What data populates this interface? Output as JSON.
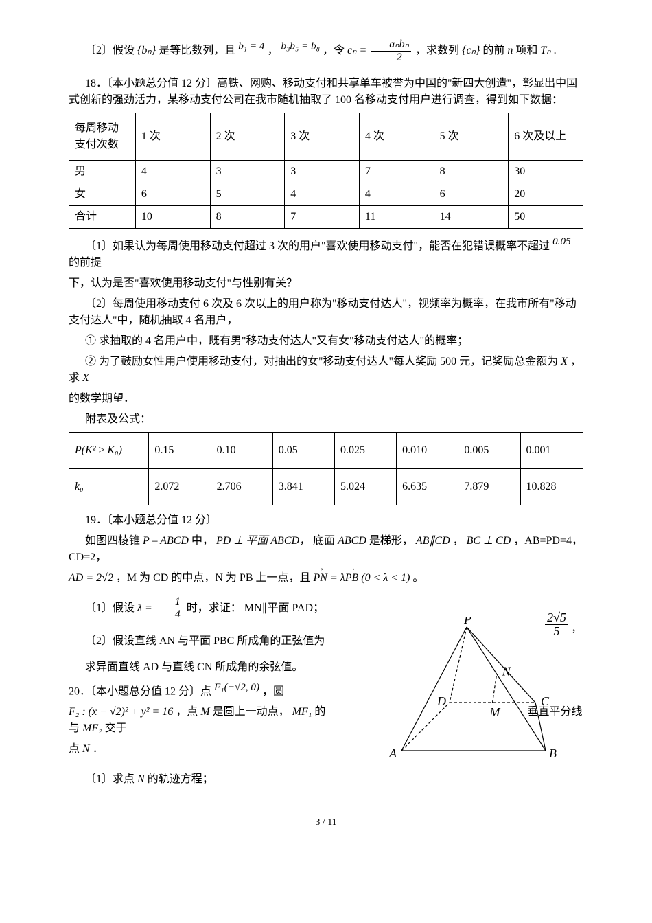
{
  "q2_part2": {
    "prefix": "〔2〕假设",
    "bn": "{bₙ}",
    "mid1": "是等比数列，且",
    "b1": "b₁ = 4",
    "comma1": "，",
    "b3b5": "b₃b₅ = b₈",
    "comma2": "，令",
    "cn_eq": "cₙ =",
    "frac_num": "aₙbₙ",
    "frac_den": "2",
    "mid2": "，求数列",
    "cn": "{cₙ}",
    "suffix": "的前",
    "n": "n",
    "tn_pre": "项和",
    "tn": "Tₙ",
    "end": "."
  },
  "q18": {
    "title": "18．〔本小题总分值 12 分〕高铁、网购、移动支付和共享单车被誉为中国的\"新四大创造\"，彰显出中国式创新的强劲活力，某移动支付公司在我市随机抽取了 100 名移动支付用户进行调查，得到如下数据：",
    "table1": {
      "headers": [
        "每周移动支付次数",
        "1 次",
        "2 次",
        "3 次",
        "4 次",
        "5 次",
        "6 次及以上"
      ],
      "rows": [
        [
          "男",
          "4",
          "3",
          "3",
          "7",
          "8",
          "30"
        ],
        [
          "女",
          "6",
          "5",
          "4",
          "4",
          "6",
          "20"
        ],
        [
          "合计",
          "10",
          "8",
          "7",
          "11",
          "14",
          "50"
        ]
      ],
      "col_w0": 92,
      "col_wn": 106
    },
    "p1_a": "〔1〕如果认为每周使用移动支付超过 3 次的用户\"喜欢使用移动支付\"，能否在犯错误概率不超过",
    "p1_val": "0.05",
    "p1_b": "的前提",
    "p1_c": "下，认为是否\"喜欢使用移动支付\"与性别有关？",
    "p2_a": "〔2〕每周使用移动支付 6 次及 6 次以上的用户称为\"移动支付达人\"，视频率为概率，在我市所有\"移动支付达人\"中，随机抽取 4 名用户，",
    "p2_b": "① 求抽取的 4 名用户中，既有男\"移动支付达人\"又有女\"移动支付达人\"的概率；",
    "p2_c_a": "② 为了鼓励女性用户使用移动支付，对抽出的女\"移动支付达人\"每人奖励 500 元，记奖励总金额为",
    "p2_c_x1": "X",
    "p2_c_b": "，求",
    "p2_c_x2": "X",
    "p2_d": "的数学期望．",
    "app_title": "附表及公式：",
    "table2": {
      "row1_h": "P(K² ≥ K₀)",
      "row1": [
        "0.15",
        "0.10",
        "0.05",
        "0.025",
        "0.010",
        "0.005",
        "0.001"
      ],
      "row2_h": "k₀",
      "row2": [
        "2.072",
        "2.706",
        "3.841",
        "5.024",
        "6.635",
        "7.879",
        "10.828"
      ],
      "col_w0": 112,
      "col_wn": 80
    }
  },
  "q19": {
    "title": "19．〔本小题总分值 12 分〕",
    "line1_a": "如图四棱锥",
    "line1_p": "P – ABCD",
    "line1_b": "中，",
    "line1_pd": "PD ⊥ 平面 ABCD，",
    "line1_c": "底面",
    "line1_abcd": "ABCD",
    "line1_d": "是梯形，",
    "line1_ab": "AB∥CD",
    "line1_e": "，",
    "line1_bc": "BC ⊥ CD",
    "line1_f": "，AB=PD=4，CD=2，",
    "line2_ad": "AD = 2√2",
    "line2_a": "，M 为 CD 的中点，N 为 PB 上一点，且",
    "line2_pn": "PN = λPB (0 < λ < 1)",
    "line2_end": "。",
    "p1_a": "〔1〕假设",
    "p1_lam": "λ = ",
    "p1_num": "1",
    "p1_den": "4",
    "p1_b": "时，求证：",
    "p1_c": "MN∥平面 PAD；",
    "p2_a": "〔2〕假设直线 AN 与平面 PBC 所成角的正弦值为",
    "p2_val_num": "2√5",
    "p2_val_den": "5",
    "p2_end": "，",
    "p2_b": "求异面直线 AD 与直线 CN 所成角的余弦值。",
    "diagram": {
      "P": "P",
      "A": "A",
      "B": "B",
      "C": "C",
      "D": "D",
      "M": "M",
      "N": "N",
      "line_solid": "#000000",
      "line_dash": "4,3",
      "stroke_w": 1.2
    }
  },
  "q20": {
    "title_a": "20．〔本小题总分值 12 分〕点",
    "f1": "F₁(−√2, 0)",
    "title_b": "，圆",
    "f2_eq": "F₂ : (x − √2)² + y² = 16",
    "mid_a": "，点",
    "m": "M",
    "mid_b": "是圆上一动点，",
    "mf1": "MF₁",
    "mid_c": "的",
    "tail_a": "垂直平分线与",
    "mf2": "MF₂",
    "tail_b": "交于",
    "n_pt": "点",
    "n": "N",
    "end": "．",
    "p1_a": "〔1〕求点",
    "p1_n": "N",
    "p1_b": "的轨迹方程；"
  },
  "footer": "3 / 11"
}
